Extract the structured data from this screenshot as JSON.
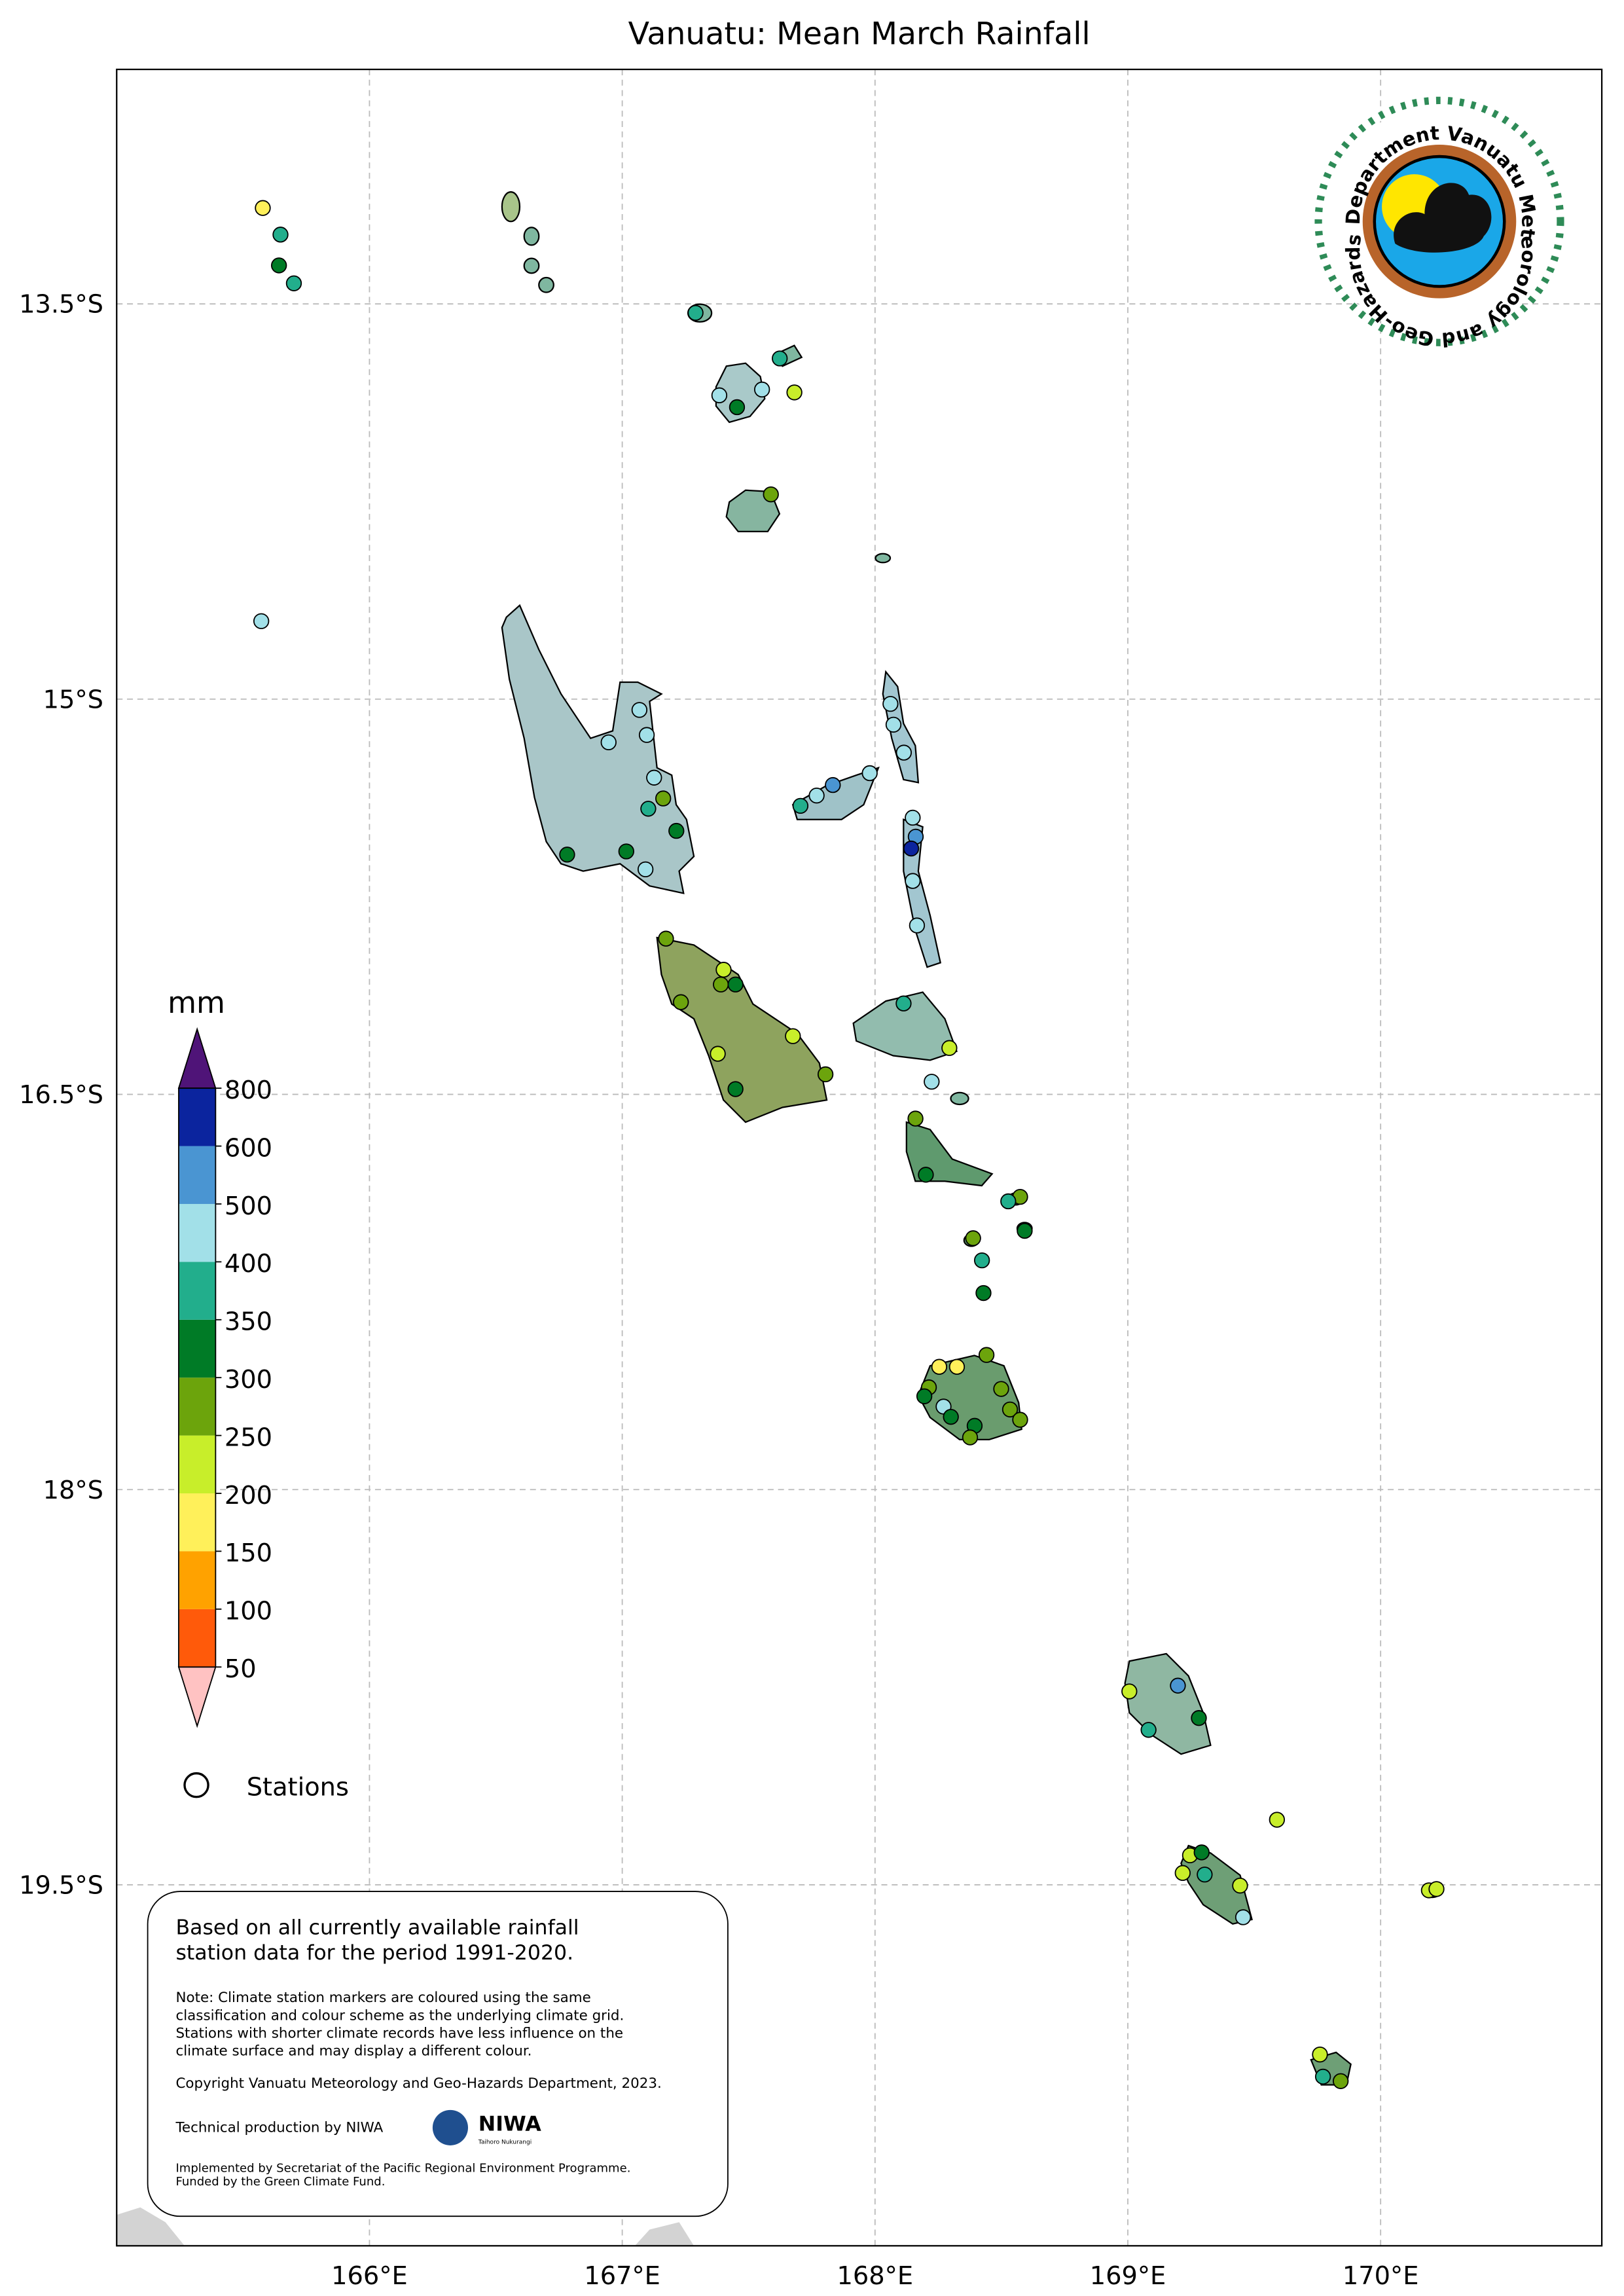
{
  "title": "Vanuatu: Mean March Rainfall",
  "map": {
    "xlim": [
      165,
      170.875
    ],
    "ylim": [
      -20.87,
      -12.61
    ],
    "grid": true,
    "xticks": [
      {
        "value": 166,
        "label": "166°E"
      },
      {
        "value": 167,
        "label": "167°E"
      },
      {
        "value": 168,
        "label": "168°E"
      },
      {
        "value": 169,
        "label": "169°E"
      },
      {
        "value": 170,
        "label": "170°E"
      }
    ],
    "yticks": [
      {
        "value": -13.5,
        "label": "13.5°S"
      },
      {
        "value": -15,
        "label": "15°S"
      },
      {
        "value": -16.5,
        "label": "16.5°S"
      },
      {
        "value": -18,
        "label": "18°S"
      },
      {
        "value": -19.5,
        "label": "19.5°S"
      }
    ]
  },
  "colorbar": {
    "label": "mm",
    "levels": [
      50,
      100,
      150,
      200,
      250,
      300,
      350,
      400,
      500,
      600,
      800
    ],
    "colors": [
      "#ff5a0a",
      "#ffa200",
      "#fff05a",
      "#c8ee2a",
      "#6ca40c",
      "#007b26",
      "#22ae8c",
      "#a2e0e8",
      "#4a95d2",
      "#0b249e"
    ],
    "under_color": "#ffc2c2",
    "over_color": "#4f1478"
  },
  "legend": {
    "label": "Stations"
  },
  "stations": [
    {
      "lon": 165.578,
      "lat": -13.136,
      "value": 175
    },
    {
      "lon": 165.648,
      "lat": -13.237,
      "value": 375
    },
    {
      "lon": 165.642,
      "lat": -13.354,
      "value": 325
    },
    {
      "lon": 165.701,
      "lat": -13.422,
      "value": 375
    },
    {
      "lon": 167.29,
      "lat": -13.534,
      "value": 375
    },
    {
      "lon": 167.384,
      "lat": -13.847,
      "value": 450
    },
    {
      "lon": 167.454,
      "lat": -13.892,
      "value": 325
    },
    {
      "lon": 167.553,
      "lat": -13.825,
      "value": 450
    },
    {
      "lon": 167.623,
      "lat": -13.707,
      "value": 375
    },
    {
      "lon": 167.681,
      "lat": -13.836,
      "value": 225
    },
    {
      "lon": 167.588,
      "lat": -14.223,
      "value": 275
    },
    {
      "lon": 165.572,
      "lat": -14.704,
      "value": 450
    },
    {
      "lon": 167.068,
      "lat": -15.041,
      "value": 450
    },
    {
      "lon": 166.946,
      "lat": -15.164,
      "value": 450
    },
    {
      "lon": 167.097,
      "lat": -15.136,
      "value": 450
    },
    {
      "lon": 167.126,
      "lat": -15.298,
      "value": 450
    },
    {
      "lon": 167.103,
      "lat": -15.416,
      "value": 375
    },
    {
      "lon": 167.162,
      "lat": -15.377,
      "value": 275
    },
    {
      "lon": 167.214,
      "lat": -15.5,
      "value": 325
    },
    {
      "lon": 167.092,
      "lat": -15.646,
      "value": 450
    },
    {
      "lon": 167.016,
      "lat": -15.578,
      "value": 325
    },
    {
      "lon": 166.782,
      "lat": -15.59,
      "value": 325
    },
    {
      "lon": 168.061,
      "lat": -15.018,
      "value": 450
    },
    {
      "lon": 168.073,
      "lat": -15.097,
      "value": 450
    },
    {
      "lon": 168.114,
      "lat": -15.203,
      "value": 450
    },
    {
      "lon": 167.979,
      "lat": -15.281,
      "value": 450
    },
    {
      "lon": 167.833,
      "lat": -15.326,
      "value": 550
    },
    {
      "lon": 167.769,
      "lat": -15.366,
      "value": 450
    },
    {
      "lon": 167.705,
      "lat": -15.405,
      "value": 375
    },
    {
      "lon": 168.149,
      "lat": -15.45,
      "value": 450
    },
    {
      "lon": 168.161,
      "lat": -15.522,
      "value": 550
    },
    {
      "lon": 168.143,
      "lat": -15.567,
      "value": 700
    },
    {
      "lon": 168.149,
      "lat": -15.69,
      "value": 450
    },
    {
      "lon": 168.166,
      "lat": -15.859,
      "value": 450
    },
    {
      "lon": 167.173,
      "lat": -15.909,
      "value": 275
    },
    {
      "lon": 167.401,
      "lat": -16.027,
      "value": 225
    },
    {
      "lon": 167.39,
      "lat": -16.083,
      "value": 275
    },
    {
      "lon": 167.448,
      "lat": -16.083,
      "value": 325
    },
    {
      "lon": 167.232,
      "lat": -16.15,
      "value": 275
    },
    {
      "lon": 167.675,
      "lat": -16.279,
      "value": 225
    },
    {
      "lon": 167.378,
      "lat": -16.346,
      "value": 225
    },
    {
      "lon": 167.804,
      "lat": -16.424,
      "value": 275
    },
    {
      "lon": 167.448,
      "lat": -16.48,
      "value": 325
    },
    {
      "lon": 168.113,
      "lat": -16.155,
      "value": 375
    },
    {
      "lon": 168.294,
      "lat": -16.324,
      "value": 225
    },
    {
      "lon": 168.224,
      "lat": -16.452,
      "value": 450
    },
    {
      "lon": 168.16,
      "lat": -16.592,
      "value": 275
    },
    {
      "lon": 168.201,
      "lat": -16.805,
      "value": 325
    },
    {
      "lon": 168.574,
      "lat": -16.889,
      "value": 275
    },
    {
      "lon": 168.527,
      "lat": -16.906,
      "value": 375
    },
    {
      "lon": 168.592,
      "lat": -17.018,
      "value": 325
    },
    {
      "lon": 168.388,
      "lat": -17.046,
      "value": 275
    },
    {
      "lon": 168.423,
      "lat": -17.13,
      "value": 375
    },
    {
      "lon": 168.429,
      "lat": -17.254,
      "value": 325
    },
    {
      "lon": 168.441,
      "lat": -17.489,
      "value": 275
    },
    {
      "lon": 168.254,
      "lat": -17.534,
      "value": 175
    },
    {
      "lon": 168.324,
      "lat": -17.534,
      "value": 175
    },
    {
      "lon": 168.213,
      "lat": -17.612,
      "value": 275
    },
    {
      "lon": 168.499,
      "lat": -17.618,
      "value": 275
    },
    {
      "lon": 168.195,
      "lat": -17.646,
      "value": 325
    },
    {
      "lon": 168.271,
      "lat": -17.685,
      "value": 450
    },
    {
      "lon": 168.534,
      "lat": -17.696,
      "value": 275
    },
    {
      "lon": 168.3,
      "lat": -17.724,
      "value": 325
    },
    {
      "lon": 168.394,
      "lat": -17.758,
      "value": 325
    },
    {
      "lon": 168.376,
      "lat": -17.802,
      "value": 275
    },
    {
      "lon": 168.574,
      "lat": -17.735,
      "value": 275
    },
    {
      "lon": 169.006,
      "lat": -18.766,
      "value": 225
    },
    {
      "lon": 169.198,
      "lat": -18.744,
      "value": 550
    },
    {
      "lon": 169.082,
      "lat": -18.912,
      "value": 375
    },
    {
      "lon": 169.281,
      "lat": -18.867,
      "value": 325
    },
    {
      "lon": 169.59,
      "lat": -19.253,
      "value": 225
    },
    {
      "lon": 169.246,
      "lat": -19.388,
      "value": 225
    },
    {
      "lon": 169.292,
      "lat": -19.377,
      "value": 325
    },
    {
      "lon": 169.217,
      "lat": -19.455,
      "value": 225
    },
    {
      "lon": 169.304,
      "lat": -19.461,
      "value": 375
    },
    {
      "lon": 169.444,
      "lat": -19.503,
      "value": 225
    },
    {
      "lon": 169.456,
      "lat": -19.623,
      "value": 450
    },
    {
      "lon": 170.191,
      "lat": -19.521,
      "value": 225
    },
    {
      "lon": 170.221,
      "lat": -19.516,
      "value": 225
    },
    {
      "lon": 169.76,
      "lat": -20.144,
      "value": 225
    },
    {
      "lon": 169.772,
      "lat": -20.228,
      "value": 375
    },
    {
      "lon": 169.842,
      "lat": -20.245,
      "value": 275
    }
  ],
  "note": {
    "summary": [
      "Based on all currently available rainfall",
      "station data for the period 1991-2020."
    ],
    "details": [
      "Note: Climate station markers are coloured using the same",
      "classification and colour scheme as the underlying climate grid.",
      "Stations with shorter climate records have less influence on the",
      "climate surface and may display a different colour."
    ],
    "copyright": "Copyright Vanuatu Meteorology and Geo-Hazards Department, 2023.",
    "production": "Technical production by NIWA",
    "funding": [
      "Implemented by Secretariat of the Pacific Regional Environment Programme.",
      "Funded by the Green Climate Fund."
    ],
    "niwa": "NIWA",
    "niwa_sub": "Taihoro Nukurangi"
  },
  "logo": {
    "text": "Department Vanuatu Meteorology and Geo-Hazards"
  }
}
